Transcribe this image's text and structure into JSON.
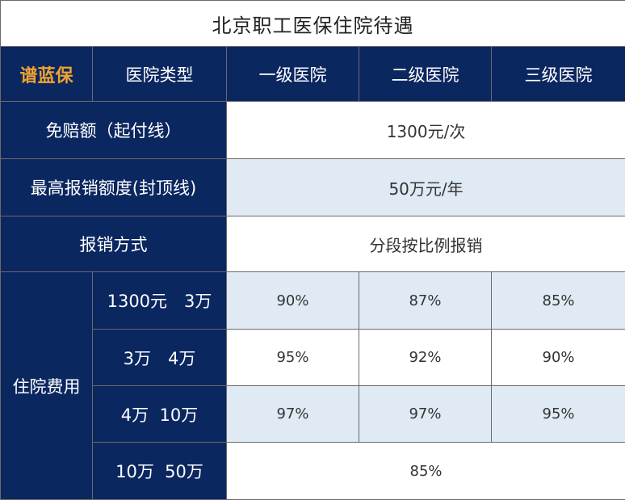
{
  "title": "北京职工医保住院待遇",
  "header": {
    "brand": "谱蓝保",
    "hospital_type": "医院类型",
    "levels": [
      "一级医院",
      "二级医院",
      "三级医院"
    ]
  },
  "rows": {
    "deductible": {
      "label": "免赔额（起付线）",
      "value": "1300元/次"
    },
    "cap": {
      "label": "最高报销额度(封顶线)",
      "value": "50万元/年"
    },
    "method": {
      "label": "报销方式",
      "value": "分段按比例报销"
    }
  },
  "hospitalization": {
    "label": "住院费用",
    "brackets": [
      {
        "range": "1300元　3万",
        "values": [
          "90%",
          "87%",
          "85%"
        ]
      },
      {
        "range": "3万　4万",
        "values": [
          "95%",
          "92%",
          "90%"
        ]
      },
      {
        "range": "4万  10万",
        "values": [
          "97%",
          "97%",
          "95%"
        ]
      },
      {
        "range": "10万  50万",
        "value": "85%"
      }
    ]
  },
  "colors": {
    "navy": "#0b2760",
    "light_blue": "#dfeaf4",
    "brand_orange": "#f0a330"
  }
}
